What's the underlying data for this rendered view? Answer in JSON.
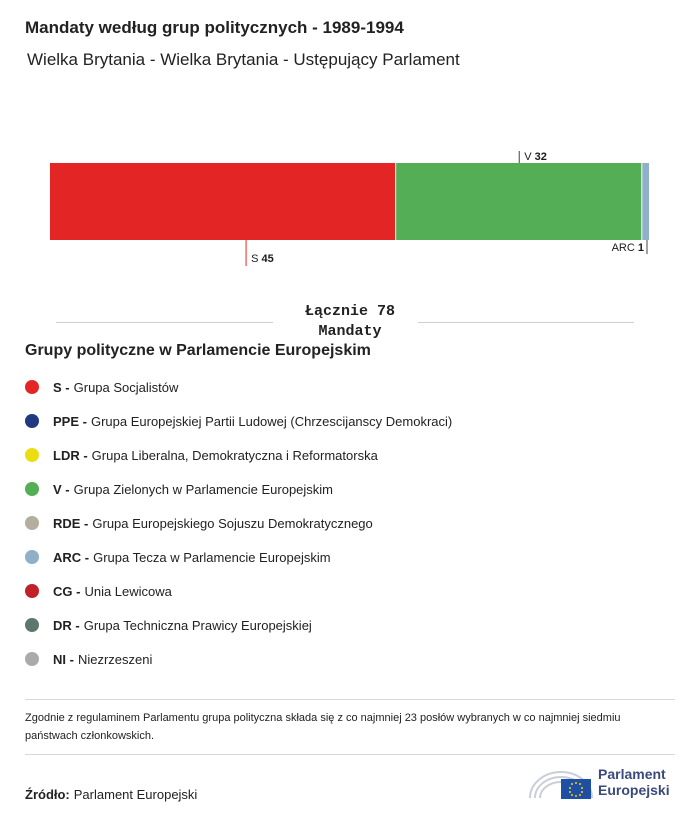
{
  "header": {
    "title": "Mandaty według grup politycznych - 1989-1994",
    "subtitle": "Wielka Brytania - Wielka Brytania - Ustępujący Parlament"
  },
  "chart_data": {
    "type": "bar",
    "orientation": "stacked-horizontal",
    "categories": [
      "S",
      "V",
      "ARC"
    ],
    "values": [
      45,
      32,
      1
    ],
    "colors": [
      "#e42525",
      "#53ae55",
      "#8fb0c8"
    ],
    "total": 78
  },
  "total": {
    "line1": "Łącznie 78",
    "line2": "Mandaty"
  },
  "legend": {
    "title": "Grupy polityczne w Parlamencie Europejskim",
    "items": [
      {
        "abbr": "S -",
        "name": "Grupa Socjalistów",
        "color": "#e42525"
      },
      {
        "abbr": "PPE -",
        "name": "Grupa Europejskiej Partii Ludowej (Chrzescijanscy Demokraci)",
        "color": "#213883"
      },
      {
        "abbr": "LDR -",
        "name": "Grupa Liberalna, Demokratyczna i Reformatorska",
        "color": "#ecdd12"
      },
      {
        "abbr": "V -",
        "name": "Grupa Zielonych w Parlamencie Europejskim",
        "color": "#53ae55"
      },
      {
        "abbr": "RDE -",
        "name": "Grupa Europejskiego Sojuszu Demokratycznego",
        "color": "#b4ae9e"
      },
      {
        "abbr": "ARC -",
        "name": "Grupa Tecza w Parlamencie Europejskim",
        "color": "#8fb0c8"
      },
      {
        "abbr": "CG -",
        "name": "Unia Lewicowa",
        "color": "#c1222a"
      },
      {
        "abbr": "DR -",
        "name": "Grupa Techniczna Prawicy Europejskiej",
        "color": "#5e776b"
      },
      {
        "abbr": "NI -",
        "name": "Niezrzeszeni",
        "color": "#aaaaaa"
      }
    ]
  },
  "footnote": "Zgodnie z regulaminem Parlamentu grupa polityczna składa się z co najmniej 23 posłów wybranych w co najmniej siedmiu państwach członkowskich.",
  "source": {
    "label": "Źródło:",
    "value": "Parlament Europejski"
  },
  "logo": {
    "line1": "Parlament",
    "line2": "Europejski",
    "flag_color": "#1f4fa3",
    "text_color": "#3b4a7a"
  }
}
